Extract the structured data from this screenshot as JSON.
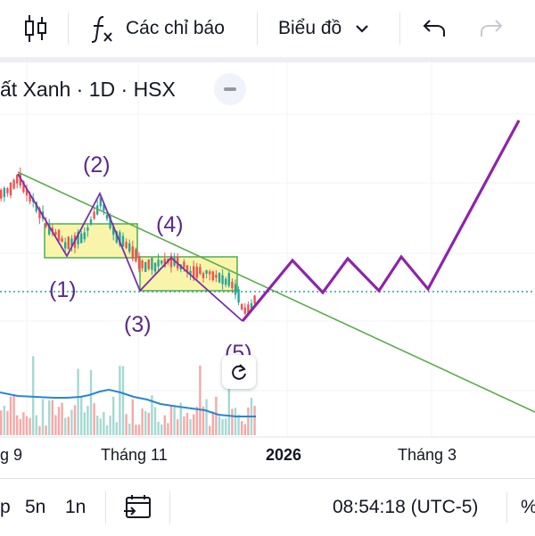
{
  "toolbar": {
    "candles_icon": "candlestick-chart-icon",
    "indicator_icon": "function-fx-icon",
    "indicators_label": "Các chỉ báo",
    "chart_type_label": "Biểu đồ",
    "chart_type_icon": "chevron-down-icon",
    "undo_icon": "undo-arrow-icon",
    "redo_icon": "redo-arrow-icon"
  },
  "legend": {
    "symbol_text": "ất Xanh · 1D · HSX"
  },
  "annotations": {
    "wave_1": "(1)",
    "wave_2": "(2)",
    "wave_3": "(3)",
    "wave_4": "(4)",
    "wave_5": "(5)"
  },
  "x_axis": {
    "labels": [
      "g 9",
      "Tháng 11",
      "2026",
      "Tháng 3"
    ]
  },
  "bottombar": {
    "range_cut": "p",
    "range_5n": "5n",
    "range_1n": "1n",
    "date_range_icon": "calendar-goto-icon",
    "time_label": "08:54:18 (UTC-5)",
    "percent_label": "%"
  },
  "colors": {
    "up_candle": "#26a69a",
    "down_candle": "#ef5350",
    "wave_line": "#7b2fa8",
    "trendline": "#5cab4d",
    "box_fill": "#f7f39b",
    "box_border": "#4caf50",
    "ma_line": "#2a86d1",
    "price_line": "#26a69a"
  }
}
